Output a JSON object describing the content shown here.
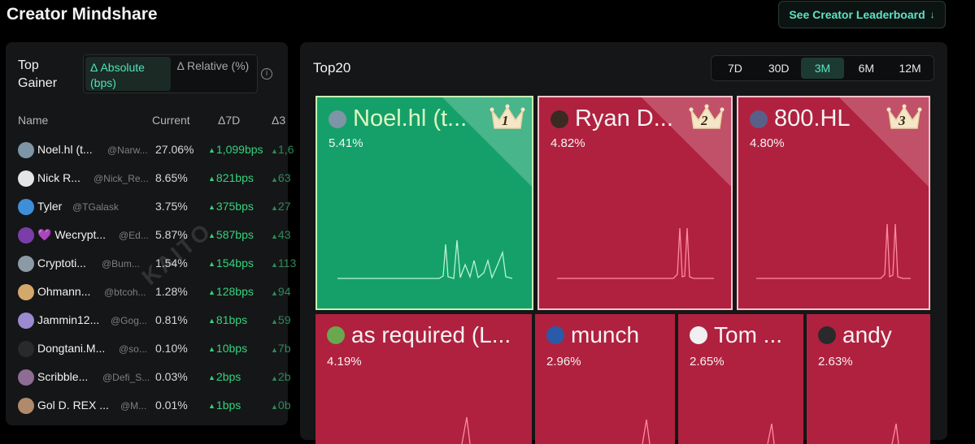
{
  "header": {
    "title": "Creator Mindshare",
    "leaderboard_label": "See Creator Leaderboard",
    "leaderboard_icon": "arrow-down-icon"
  },
  "left": {
    "label": "Top Gainer",
    "toggle": {
      "absolute": "Δ Absolute (bps)",
      "relative": "Δ Relative (%)",
      "active": "absolute"
    },
    "columns": {
      "name": "Name",
      "current": "Current",
      "d7": "Δ7D",
      "d30": "Δ3"
    },
    "watermark": "KAITO",
    "rows": [
      {
        "name": "Noel.hl (t...",
        "handle": "@Narw...",
        "current": "27.06%",
        "d7": "1,099bps",
        "d30": "1,6",
        "avatar_color": "#7d95a6"
      },
      {
        "name": "Nick R...",
        "handle": "@Nick_Re...",
        "current": "8.65%",
        "d7": "821bps",
        "d30": "63",
        "avatar_color": "#e5e5e5"
      },
      {
        "name": "Tyler",
        "handle": "@TGalask",
        "current": "3.75%",
        "d7": "375bps",
        "d30": "27",
        "avatar_color": "#3f8ed8"
      },
      {
        "name": "💜 Wecrypt...",
        "handle": "@Ed...",
        "current": "5.87%",
        "d7": "587bps",
        "d30": "43",
        "avatar_color": "#7a3ea8"
      },
      {
        "name": "Cryptoti...",
        "handle": "@Bum...",
        "current": "1.54%",
        "d7": "154bps",
        "d30": "113",
        "avatar_color": "#8c9aa6"
      },
      {
        "name": "Ohmann...",
        "handle": "@btcoh...",
        "current": "1.28%",
        "d7": "128bps",
        "d30": "94",
        "avatar_color": "#d4a86a"
      },
      {
        "name": "Jammin12...",
        "handle": "@Gog...",
        "current": "0.81%",
        "d7": "81bps",
        "d30": "59",
        "avatar_color": "#9b8ad0"
      },
      {
        "name": "Dongtani.M...",
        "handle": "@so...",
        "current": "0.10%",
        "d7": "10bps",
        "d30": "7b",
        "avatar_color": "#2a2a2a"
      },
      {
        "name": "Scribble...",
        "handle": "@Defi_S...",
        "current": "0.03%",
        "d7": "2bps",
        "d30": "2b",
        "avatar_color": "#8e6c94"
      },
      {
        "name": "Gol D. REX ...",
        "handle": "@M...",
        "current": "0.01%",
        "d7": "1bps",
        "d30": "0b",
        "avatar_color": "#b08a6a"
      }
    ]
  },
  "right": {
    "title": "Top20",
    "periods": [
      "7D",
      "30D",
      "3M",
      "6M",
      "12M"
    ],
    "active_period": "3M",
    "tiles": [
      {
        "name": "Noel.hl (t...",
        "pct": "5.41%",
        "rank": "1",
        "color": "green",
        "avatar_color": "#7d95a6"
      },
      {
        "name": "Ryan D...",
        "pct": "4.82%",
        "rank": "2",
        "color": "red",
        "avatar_color": "#3a2a22"
      },
      {
        "name": "800.HL",
        "pct": "4.80%",
        "rank": "3",
        "color": "red",
        "avatar_color": "#5a5f8a"
      },
      {
        "name": "as required (L...",
        "pct": "4.19%",
        "color": "red",
        "avatar_color": "#6aa84f"
      },
      {
        "name": "munch",
        "pct": "2.96%",
        "color": "red",
        "avatar_color": "#2b5aa8"
      },
      {
        "name": "Tom ...",
        "pct": "2.65%",
        "color": "red",
        "avatar_color": "#f0f0f0"
      },
      {
        "name": "andy",
        "pct": "2.63%",
        "color": "red",
        "avatar_color": "#2a2a2a"
      }
    ]
  }
}
